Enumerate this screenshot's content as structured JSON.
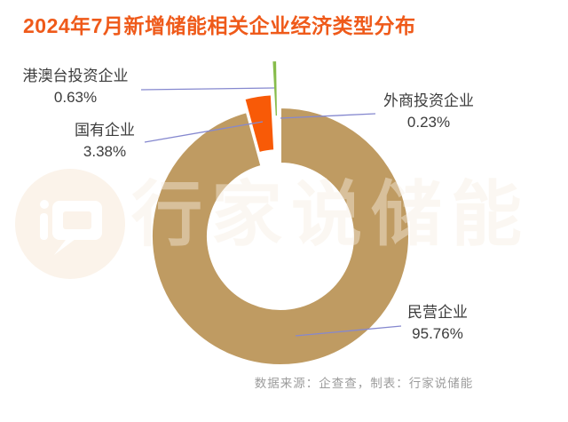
{
  "chart_data": {
    "type": "pie",
    "variant": "donut",
    "title": "2024年7月新增储能相关企业经济类型分布",
    "units": "%",
    "start_angle_deg": 0,
    "direction": "clockwise",
    "inner_radius_ratio": 0.57,
    "legend": "none",
    "segments": [
      {
        "key": "private",
        "label": "民营企业",
        "value": 95.76,
        "pct": "95.76%",
        "color": "#BF9B62",
        "explode": 0
      },
      {
        "key": "state",
        "label": "国有企业",
        "value": 3.38,
        "pct": "3.38%",
        "color": "#F85A07",
        "explode": 15
      },
      {
        "key": "hmt",
        "label": "港澳台投资企业",
        "value": 0.63,
        "pct": "0.63%",
        "color": "#87BC4B",
        "explode": 53
      },
      {
        "key": "foreign",
        "label": "外商投资企业",
        "value": 0.23,
        "pct": "0.23%",
        "color": "#E3D44C",
        "explode": 18
      }
    ],
    "source_note": "数据来源：企查查，制表：行家说储能",
    "watermark": "行家说储能"
  },
  "colors": {
    "title_color": "#EF5A1A",
    "label_color": "#3C3C3C",
    "source_color": "#9C9C9C",
    "leader_line": "#8588CF",
    "watermark_color": "rgba(247,237,226,0.45)",
    "wm_logo_bg": "#FBF3EA"
  }
}
